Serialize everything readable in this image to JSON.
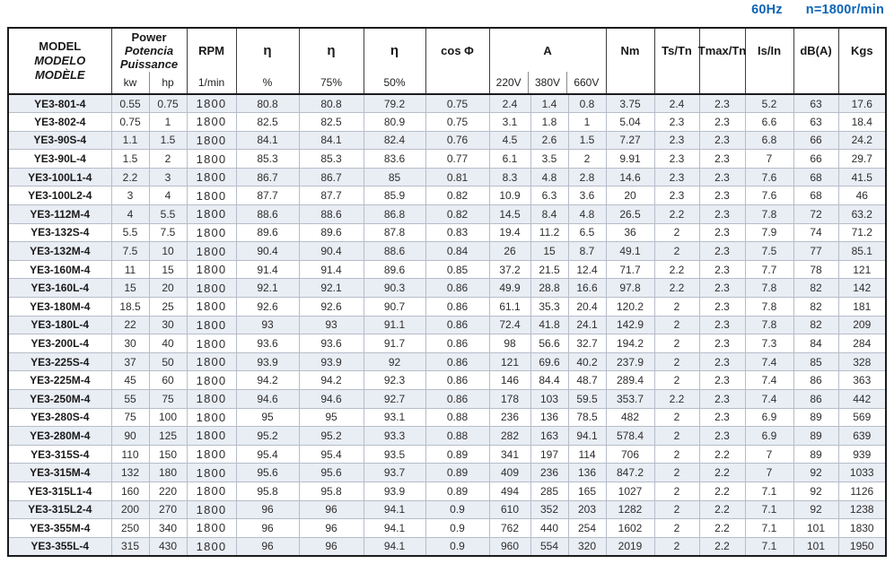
{
  "header_note": {
    "frequency": "60Hz",
    "speed": "n=1800r/min"
  },
  "colors": {
    "accent_blue": "#0d64b6",
    "row_stripe": "#e9edf4"
  },
  "table": {
    "columns": {
      "model_lines": [
        "MODEL",
        "MODELO",
        "MODÈLE"
      ],
      "power_lines": [
        "Power",
        "Potencia",
        "Puissance"
      ],
      "power_sub": [
        "kw",
        "hp"
      ],
      "rpm_label": "RPM",
      "rpm_sub": "1/min",
      "eta_labels": [
        "η",
        "η",
        "η"
      ],
      "eta_subs": [
        "%",
        "75%",
        "50%"
      ],
      "cos_label": "cos Φ",
      "current_label": "A",
      "current_sub": [
        "220V",
        "380V",
        "660V"
      ],
      "nm_label": "Nm",
      "ts_label": "Ts/Tn",
      "tmax_label": "Tmax/Tn",
      "is_label": "Is/In",
      "db_label": "dB(A)",
      "kgs_label": "Kgs"
    },
    "rows": [
      [
        "YE3-801-4",
        "0.55",
        "0.75",
        "1800",
        "80.8",
        "80.8",
        "79.2",
        "0.75",
        "2.4",
        "1.4",
        "0.8",
        "3.75",
        "2.4",
        "2.3",
        "5.2",
        "63",
        "17.6"
      ],
      [
        "YE3-802-4",
        "0.75",
        "1",
        "1800",
        "82.5",
        "82.5",
        "80.9",
        "0.75",
        "3.1",
        "1.8",
        "1",
        "5.04",
        "2.3",
        "2.3",
        "6.6",
        "63",
        "18.4"
      ],
      [
        "YE3-90S-4",
        "1.1",
        "1.5",
        "1800",
        "84.1",
        "84.1",
        "82.4",
        "0.76",
        "4.5",
        "2.6",
        "1.5",
        "7.27",
        "2.3",
        "2.3",
        "6.8",
        "66",
        "24.2"
      ],
      [
        "YE3-90L-4",
        "1.5",
        "2",
        "1800",
        "85.3",
        "85.3",
        "83.6",
        "0.77",
        "6.1",
        "3.5",
        "2",
        "9.91",
        "2.3",
        "2.3",
        "7",
        "66",
        "29.7"
      ],
      [
        "YE3-100L1-4",
        "2.2",
        "3",
        "1800",
        "86.7",
        "86.7",
        "85",
        "0.81",
        "8.3",
        "4.8",
        "2.8",
        "14.6",
        "2.3",
        "2.3",
        "7.6",
        "68",
        "41.5"
      ],
      [
        "YE3-100L2-4",
        "3",
        "4",
        "1800",
        "87.7",
        "87.7",
        "85.9",
        "0.82",
        "10.9",
        "6.3",
        "3.6",
        "20",
        "2.3",
        "2.3",
        "7.6",
        "68",
        "46"
      ],
      [
        "YE3-112M-4",
        "4",
        "5.5",
        "1800",
        "88.6",
        "88.6",
        "86.8",
        "0.82",
        "14.5",
        "8.4",
        "4.8",
        "26.5",
        "2.2",
        "2.3",
        "7.8",
        "72",
        "63.2"
      ],
      [
        "YE3-132S-4",
        "5.5",
        "7.5",
        "1800",
        "89.6",
        "89.6",
        "87.8",
        "0.83",
        "19.4",
        "11.2",
        "6.5",
        "36",
        "2",
        "2.3",
        "7.9",
        "74",
        "71.2"
      ],
      [
        "YE3-132M-4",
        "7.5",
        "10",
        "1800",
        "90.4",
        "90.4",
        "88.6",
        "0.84",
        "26",
        "15",
        "8.7",
        "49.1",
        "2",
        "2.3",
        "7.5",
        "77",
        "85.1"
      ],
      [
        "YE3-160M-4",
        "11",
        "15",
        "1800",
        "91.4",
        "91.4",
        "89.6",
        "0.85",
        "37.2",
        "21.5",
        "12.4",
        "71.7",
        "2.2",
        "2.3",
        "7.7",
        "78",
        "121"
      ],
      [
        "YE3-160L-4",
        "15",
        "20",
        "1800",
        "92.1",
        "92.1",
        "90.3",
        "0.86",
        "49.9",
        "28.8",
        "16.6",
        "97.8",
        "2.2",
        "2.3",
        "7.8",
        "82",
        "142"
      ],
      [
        "YE3-180M-4",
        "18.5",
        "25",
        "1800",
        "92.6",
        "92.6",
        "90.7",
        "0.86",
        "61.1",
        "35.3",
        "20.4",
        "120.2",
        "2",
        "2.3",
        "7.8",
        "82",
        "181"
      ],
      [
        "YE3-180L-4",
        "22",
        "30",
        "1800",
        "93",
        "93",
        "91.1",
        "0.86",
        "72.4",
        "41.8",
        "24.1",
        "142.9",
        "2",
        "2.3",
        "7.8",
        "82",
        "209"
      ],
      [
        "YE3-200L-4",
        "30",
        "40",
        "1800",
        "93.6",
        "93.6",
        "91.7",
        "0.86",
        "98",
        "56.6",
        "32.7",
        "194.2",
        "2",
        "2.3",
        "7.3",
        "84",
        "284"
      ],
      [
        "YE3-225S-4",
        "37",
        "50",
        "1800",
        "93.9",
        "93.9",
        "92",
        "0.86",
        "121",
        "69.6",
        "40.2",
        "237.9",
        "2",
        "2.3",
        "7.4",
        "85",
        "328"
      ],
      [
        "YE3-225M-4",
        "45",
        "60",
        "1800",
        "94.2",
        "94.2",
        "92.3",
        "0.86",
        "146",
        "84.4",
        "48.7",
        "289.4",
        "2",
        "2.3",
        "7.4",
        "86",
        "363"
      ],
      [
        "YE3-250M-4",
        "55",
        "75",
        "1800",
        "94.6",
        "94.6",
        "92.7",
        "0.86",
        "178",
        "103",
        "59.5",
        "353.7",
        "2.2",
        "2.3",
        "7.4",
        "86",
        "442"
      ],
      [
        "YE3-280S-4",
        "75",
        "100",
        "1800",
        "95",
        "95",
        "93.1",
        "0.88",
        "236",
        "136",
        "78.5",
        "482",
        "2",
        "2.3",
        "6.9",
        "89",
        "569"
      ],
      [
        "YE3-280M-4",
        "90",
        "125",
        "1800",
        "95.2",
        "95.2",
        "93.3",
        "0.88",
        "282",
        "163",
        "94.1",
        "578.4",
        "2",
        "2.3",
        "6.9",
        "89",
        "639"
      ],
      [
        "YE3-315S-4",
        "110",
        "150",
        "1800",
        "95.4",
        "95.4",
        "93.5",
        "0.89",
        "341",
        "197",
        "114",
        "706",
        "2",
        "2.2",
        "7",
        "89",
        "939"
      ],
      [
        "YE3-315M-4",
        "132",
        "180",
        "1800",
        "95.6",
        "95.6",
        "93.7",
        "0.89",
        "409",
        "236",
        "136",
        "847.2",
        "2",
        "2.2",
        "7",
        "92",
        "1033"
      ],
      [
        "YE3-315L1-4",
        "160",
        "220",
        "1800",
        "95.8",
        "95.8",
        "93.9",
        "0.89",
        "494",
        "285",
        "165",
        "1027",
        "2",
        "2.2",
        "7.1",
        "92",
        "1126"
      ],
      [
        "YE3-315L2-4",
        "200",
        "270",
        "1800",
        "96",
        "96",
        "94.1",
        "0.9",
        "610",
        "352",
        "203",
        "1282",
        "2",
        "2.2",
        "7.1",
        "92",
        "1238"
      ],
      [
        "YE3-355M-4",
        "250",
        "340",
        "1800",
        "96",
        "96",
        "94.1",
        "0.9",
        "762",
        "440",
        "254",
        "1602",
        "2",
        "2.2",
        "7.1",
        "101",
        "1830"
      ],
      [
        "YE3-355L-4",
        "315",
        "430",
        "1800",
        "96",
        "96",
        "94.1",
        "0.9",
        "960",
        "554",
        "320",
        "2019",
        "2",
        "2.2",
        "7.1",
        "101",
        "1950"
      ]
    ]
  }
}
